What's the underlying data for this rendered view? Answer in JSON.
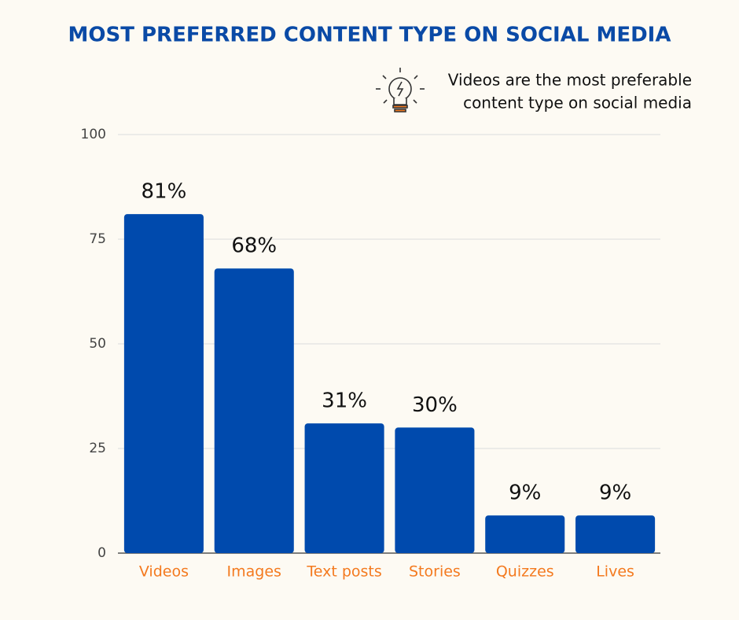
{
  "chart_data": {
    "type": "bar",
    "title": "MOST PREFERRED CONTENT TYPE ON SOCIAL MEDIA",
    "annotation": [
      "Videos are the most preferable",
      "content type on social media"
    ],
    "categories": [
      "Videos",
      "Images",
      "Text posts",
      "Stories",
      "Quizzes",
      "Lives"
    ],
    "values": [
      81,
      68,
      31,
      30,
      9,
      9
    ],
    "value_labels": [
      "81%",
      "68%",
      "31%",
      "30%",
      "9%",
      "9%"
    ],
    "color": "#004aad",
    "ylim": [
      0,
      100
    ],
    "yticks": [
      0,
      25,
      50,
      75,
      100
    ],
    "grid": true
  }
}
